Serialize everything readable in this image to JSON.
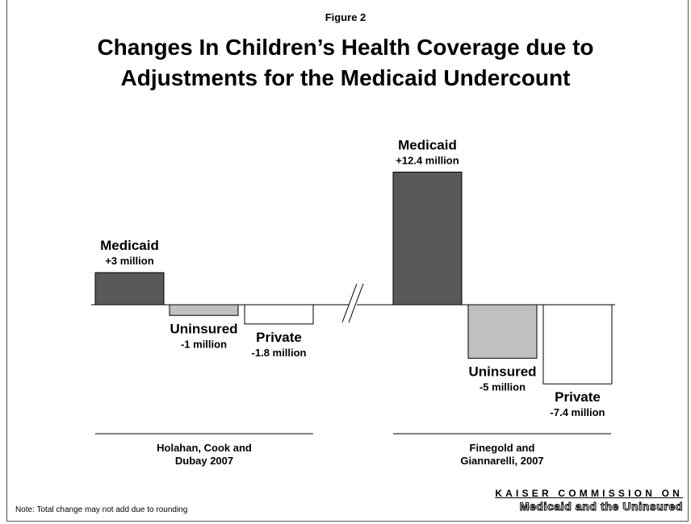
{
  "figure_label": "Figure 2",
  "title_line1": "Changes In Children’s Health Coverage due to",
  "title_line2": "Adjustments for the Medicaid Undercount",
  "note": "Note: Total change may not add due to rounding",
  "logo": {
    "line1": "KAISER COMMISSION ON",
    "line2": "Medicaid and the Uninsured"
  },
  "colors": {
    "medicaid": "#595959",
    "uninsured": "#c0c0c0",
    "private": "#ffffff",
    "outline": "#000000"
  },
  "chart_data": {
    "type": "bar",
    "title": "Changes In Children’s Health Coverage due to Adjustments for the Medicaid Undercount",
    "categories": [
      "Medicaid",
      "Uninsured",
      "Private"
    ],
    "unit": "million",
    "axis_break_between_groups": true,
    "groups": [
      {
        "name_line1": "Holahan, Cook and",
        "name_line2": "Dubay 2007",
        "bars": [
          {
            "category": "Medicaid",
            "value": 3,
            "label": "+3 million",
            "color": "#595959"
          },
          {
            "category": "Uninsured",
            "value": -1,
            "label": "-1 million",
            "color": "#c0c0c0"
          },
          {
            "category": "Private",
            "value": -1.8,
            "label": "-1.8 million",
            "color": "#ffffff"
          }
        ]
      },
      {
        "name_line1": "Finegold and",
        "name_line2": "Giannarelli, 2007",
        "bars": [
          {
            "category": "Medicaid",
            "value": 12.4,
            "label": "+12.4 million",
            "color": "#595959"
          },
          {
            "category": "Uninsured",
            "value": -5,
            "label": "-5 million",
            "color": "#c0c0c0"
          },
          {
            "category": "Private",
            "value": -7.4,
            "label": "-7.4 million",
            "color": "#ffffff"
          }
        ]
      }
    ]
  }
}
